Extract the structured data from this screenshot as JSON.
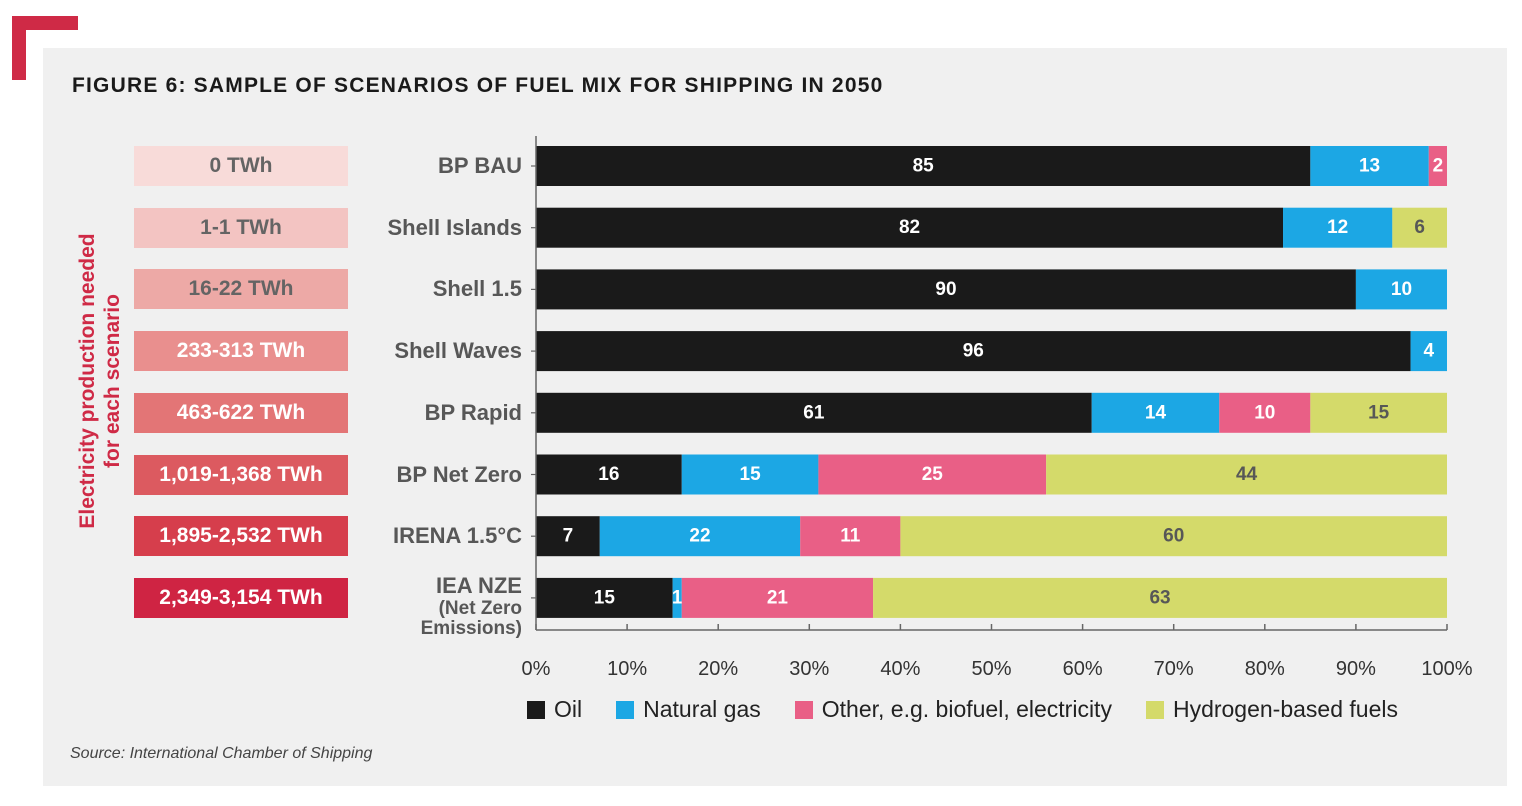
{
  "title": "FIGURE 6: SAMPLE OF SCENARIOS OF FUEL MIX FOR SHIPPING IN 2050",
  "side_label_line1": "Electricity production needed",
  "side_label_line2": "for each scenario",
  "source": "Source: International Chamber of Shipping",
  "colors": {
    "accent": "#cf2a46",
    "oil": "#1a1a1a",
    "gas": "#1ca7e4",
    "other": "#e95f86",
    "hydrogen": "#d4da6a"
  },
  "electricity": [
    {
      "label": "0 TWh",
      "bg": "#f8dbd9",
      "fg": "#646464"
    },
    {
      "label": "1-1 TWh",
      "bg": "#f3c4c2",
      "fg": "#646464"
    },
    {
      "label": "16-22 TWh",
      "bg": "#eda9a6",
      "fg": "#646464"
    },
    {
      "label": "233-313 TWh",
      "bg": "#e98f8e",
      "fg": "#ffffff"
    },
    {
      "label": "463-622 TWh",
      "bg": "#e37576",
      "fg": "#ffffff"
    },
    {
      "label": "1,019-1,368 TWh",
      "bg": "#dc5a60",
      "fg": "#ffffff"
    },
    {
      "label": "1,895-2,532 TWh",
      "bg": "#d63e4c",
      "fg": "#ffffff"
    },
    {
      "label": "2,349-3,154 TWh",
      "bg": "#cf2443",
      "fg": "#ffffff"
    }
  ],
  "scenarios": [
    {
      "name": "BP BAU",
      "sub": ""
    },
    {
      "name": "Shell Islands",
      "sub": ""
    },
    {
      "name": "Shell 1.5",
      "sub": ""
    },
    {
      "name": "Shell Waves",
      "sub": ""
    },
    {
      "name": "BP Rapid",
      "sub": ""
    },
    {
      "name": "BP Net Zero",
      "sub": ""
    },
    {
      "name": "IRENA 1.5°C",
      "sub": ""
    },
    {
      "name": "IEA NZE",
      "sub": "(Net Zero\nEmissions)"
    }
  ],
  "chart_data": {
    "type": "bar",
    "orientation": "horizontal",
    "stacked": true,
    "categories": [
      "BP BAU",
      "Shell Islands",
      "Shell 1.5",
      "Shell Waves",
      "BP Rapid",
      "BP Net Zero",
      "IRENA 1.5°C",
      "IEA NZE (Net Zero Emissions)"
    ],
    "series": [
      {
        "name": "Oil",
        "color": "#1a1a1a",
        "label_color": "#ffffff",
        "values": [
          85,
          82,
          90,
          96,
          61,
          16,
          7,
          15
        ]
      },
      {
        "name": "Natural gas",
        "color": "#1ca7e4",
        "label_color": "#ffffff",
        "values": [
          13,
          12,
          10,
          4,
          14,
          15,
          22,
          1
        ]
      },
      {
        "name": "Other, e.g. biofuel, electricity",
        "color": "#e95f86",
        "label_color": "#ffffff",
        "values": [
          2,
          0,
          0,
          0,
          10,
          25,
          11,
          21
        ]
      },
      {
        "name": "Hydrogen-based fuels",
        "color": "#d4da6a",
        "label_color": "#575757",
        "values": [
          0,
          6,
          0,
          0,
          15,
          44,
          60,
          63
        ]
      }
    ],
    "xlim": [
      0,
      100
    ],
    "xticks": [
      "0%",
      "10%",
      "20%",
      "30%",
      "40%",
      "50%",
      "60%",
      "70%",
      "80%",
      "90%",
      "100%"
    ],
    "legend_position": "bottom",
    "grid": false
  }
}
